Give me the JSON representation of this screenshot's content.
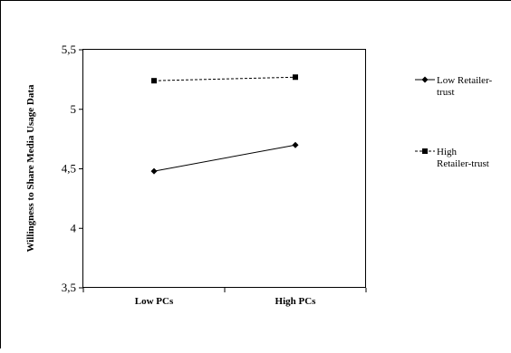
{
  "chart_data": {
    "type": "line",
    "categories": [
      "Low PCs",
      "High PCs"
    ],
    "series": [
      {
        "name": "Low Retailer-trust",
        "legend_lines": [
          "Low Retailer-",
          "trust"
        ],
        "values": [
          4.48,
          4.7
        ],
        "line_style": "solid",
        "marker": "diamond",
        "color": "#000000"
      },
      {
        "name": "High Retailer-trust",
        "legend_lines": [
          "High",
          "Retailer-trust"
        ],
        "values": [
          5.24,
          5.27
        ],
        "line_style": "dashed",
        "marker": "square",
        "color": "#000000"
      }
    ],
    "ylabel": "Willingness to Share Media Usage Data",
    "ylim": [
      3.5,
      5.5
    ],
    "yticks": [
      "5,5",
      "5",
      "4,5",
      "4",
      "3,5"
    ],
    "grid": false,
    "legend_position": "right"
  }
}
